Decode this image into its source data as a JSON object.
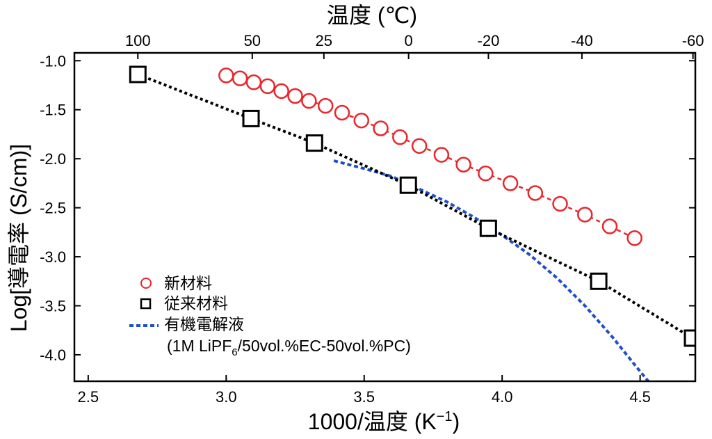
{
  "chart_data": {
    "type": "scatter",
    "top_axis_title": "温度 (℃)",
    "top_ticks": [
      "100",
      "50",
      "25",
      "0",
      "-20",
      "-40",
      "-60"
    ],
    "top_tick_celsius": [
      100,
      50,
      25,
      0,
      -20,
      -40,
      -60
    ],
    "xlabel_prefix": "1000/温度 (K",
    "xlabel_sup": "−1",
    "xlabel_suffix": ")",
    "ylabel": "Log[導電率 (S/cm)]",
    "xlim": [
      2.45,
      4.7
    ],
    "ylim": [
      -4.27,
      -0.92
    ],
    "x_ticks": [
      "2.5",
      "3.0",
      "3.5",
      "4.0",
      "4.5"
    ],
    "y_ticks": [
      "-1.0",
      "-1.5",
      "-2.0",
      "-2.5",
      "-3.0",
      "-3.5",
      "-4.0"
    ],
    "series": [
      {
        "name": "新材料",
        "marker": "circle",
        "color": "#e8262b",
        "line_color": "#e8262b",
        "x": [
          3.0,
          3.05,
          3.1,
          3.15,
          3.2,
          3.25,
          3.3,
          3.36,
          3.42,
          3.49,
          3.56,
          3.63,
          3.7,
          3.78,
          3.86,
          3.94,
          4.03,
          4.12,
          4.21,
          4.3,
          4.39,
          4.48
        ],
        "y": [
          -1.15,
          -1.18,
          -1.22,
          -1.26,
          -1.31,
          -1.36,
          -1.41,
          -1.46,
          -1.53,
          -1.61,
          -1.69,
          -1.78,
          -1.87,
          -1.96,
          -2.06,
          -2.15,
          -2.25,
          -2.35,
          -2.46,
          -2.57,
          -2.69,
          -2.81
        ]
      },
      {
        "name": "従来材料",
        "marker": "square",
        "color": "#000000",
        "line_color": "#000000",
        "x": [
          2.68,
          3.09,
          3.32,
          3.66,
          3.95,
          4.35,
          4.69
        ],
        "y": [
          -1.14,
          -1.59,
          -1.84,
          -2.27,
          -2.71,
          -3.25,
          -3.83
        ]
      },
      {
        "name": "有機電解液",
        "sub_label_pre": "(1M LiPF",
        "sub_label_sub": "6",
        "sub_label_post": "/50vol.%EC-50vol.%PC)",
        "marker": "none",
        "color": "#1f4fc8",
        "x": [
          3.39,
          3.5,
          3.6,
          3.7,
          3.8,
          3.9,
          4.0,
          4.1,
          4.2,
          4.3,
          4.4,
          4.5,
          4.53
        ],
        "y": [
          -2.02,
          -2.1,
          -2.18,
          -2.31,
          -2.44,
          -2.6,
          -2.78,
          -2.98,
          -3.22,
          -3.5,
          -3.82,
          -4.17,
          -4.27
        ]
      }
    ],
    "legend_position": "bottom-left",
    "grid": false
  }
}
